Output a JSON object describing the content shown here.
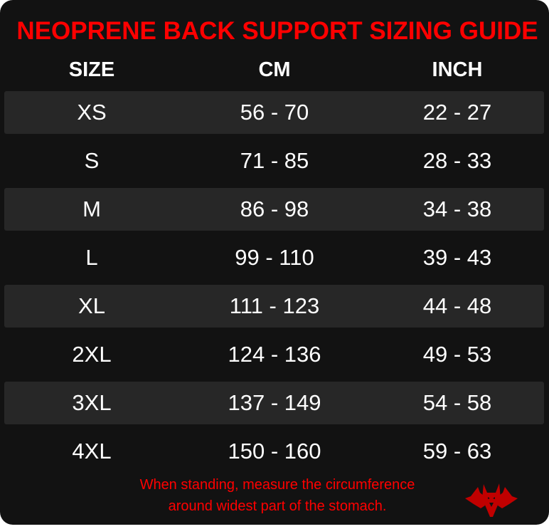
{
  "title": "NEOPRENE BACK SUPPORT SIZING GUIDE",
  "headers": [
    "SIZE",
    "CM",
    "INCH"
  ],
  "rows": [
    {
      "size": "XS",
      "cm": "56 - 70",
      "inch": "22 - 27"
    },
    {
      "size": "S",
      "cm": "71 - 85",
      "inch": "28 - 33"
    },
    {
      "size": "M",
      "cm": "86 - 98",
      "inch": "34 - 38"
    },
    {
      "size": "L",
      "cm": "99 - 110",
      "inch": "39 - 43"
    },
    {
      "size": "XL",
      "cm": "111 - 123",
      "inch": "44 - 48"
    },
    {
      "size": "2XL",
      "cm": "124 - 136",
      "inch": "49 - 53"
    },
    {
      "size": "3XL",
      "cm": "137 - 149",
      "inch": "54 - 58"
    },
    {
      "size": "4XL",
      "cm": "150 - 160",
      "inch": "59 - 63"
    }
  ],
  "footer": {
    "line1": "When standing, measure the circumference",
    "line2": "around widest part of the stomach."
  },
  "logo": "three-headed-wolf-logo",
  "colors": {
    "accent": "#ff0000",
    "background": "#121212",
    "stripe": "#272727",
    "text": "#ffffff",
    "logo": "#c00000"
  }
}
